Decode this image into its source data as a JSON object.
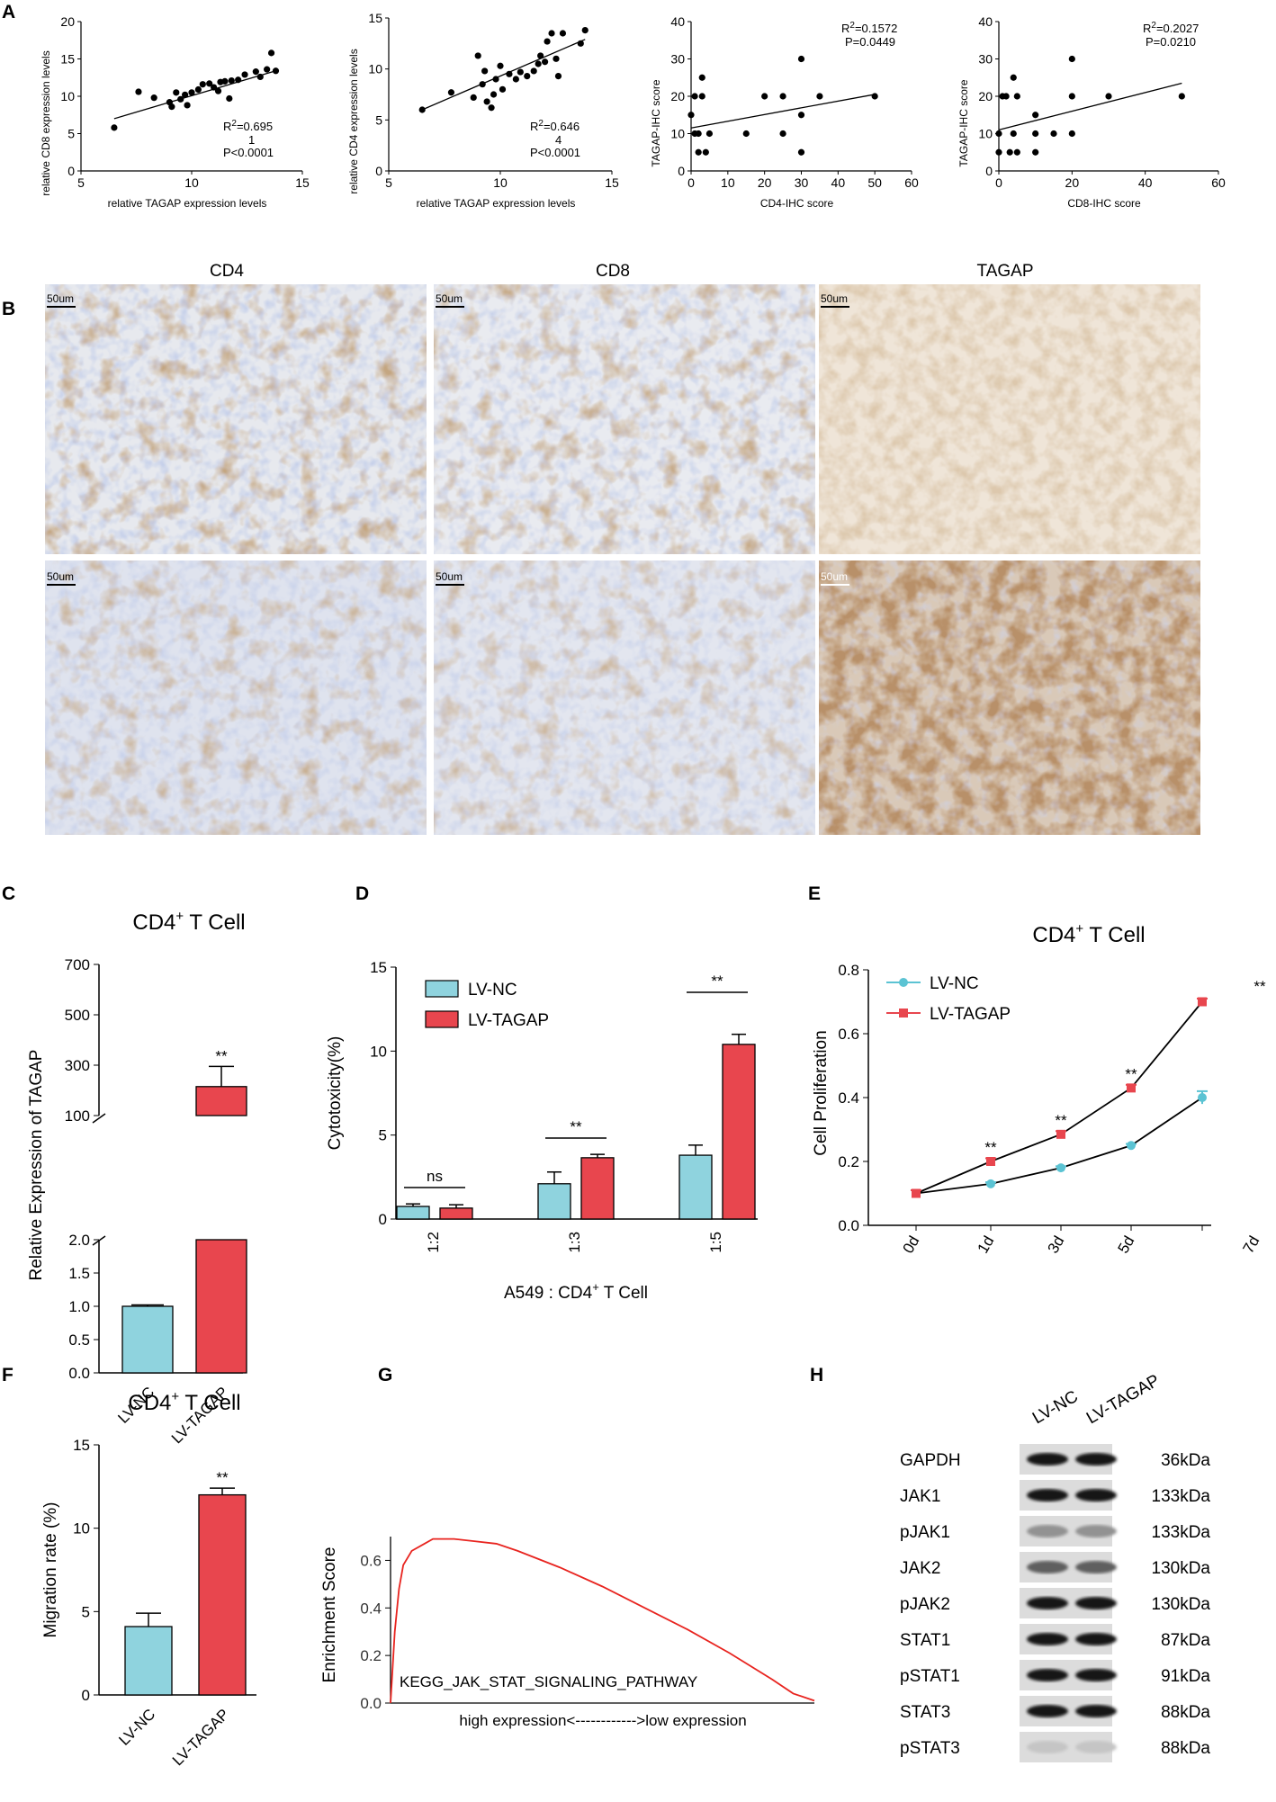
{
  "panels": {
    "A": "A",
    "B": "B",
    "C": "C",
    "D": "D",
    "E": "E",
    "F": "F",
    "G": "G",
    "H": "H"
  },
  "scatter_stats": [
    {
      "r2_main": "R",
      "r2_sup": "2",
      "r2_val": "=0.695",
      "r2_wrap": "1",
      "p": "P<0.0001"
    },
    {
      "r2_main": "R",
      "r2_sup": "2",
      "r2_val": "=0.646",
      "r2_wrap": "4",
      "p": "P<0.0001"
    },
    {
      "r2_main": "R",
      "r2_sup": "2",
      "r2_val": "=0.1572",
      "p": "P=0.0449"
    },
    {
      "r2_main": "R",
      "r2_sup": "2",
      "r2_val": "=0.2027",
      "p": "P=0.0210"
    }
  ],
  "micrographs": {
    "columns": [
      "CD4",
      "CD8",
      "TAGAP"
    ],
    "scale_bar": "50um"
  },
  "colors": {
    "lv_nc": "#8fd3de",
    "lv_tagap": "#e8464e",
    "line_nc": "#5bc3d3",
    "gsea": "#e8241f"
  },
  "chart_data": [
    {
      "id": "A1",
      "type": "scatter",
      "xlabel": "relative TAGAP expression levels",
      "ylabel": "relative CD8 expression levels",
      "xlim": [
        5,
        15
      ],
      "ylim": [
        0,
        20
      ],
      "xticks": [
        5,
        10,
        15
      ],
      "yticks": [
        0,
        5,
        10,
        15,
        20
      ],
      "points": [
        [
          6.5,
          5.8
        ],
        [
          7.6,
          10.6
        ],
        [
          8.3,
          9.8
        ],
        [
          9.0,
          9.2
        ],
        [
          9.1,
          8.6
        ],
        [
          9.3,
          10.5
        ],
        [
          9.5,
          9.6
        ],
        [
          9.7,
          10.2
        ],
        [
          9.8,
          8.8
        ],
        [
          10.0,
          10.5
        ],
        [
          10.3,
          10.9
        ],
        [
          10.5,
          11.6
        ],
        [
          10.8,
          11.7
        ],
        [
          11.0,
          11.2
        ],
        [
          11.2,
          10.7
        ],
        [
          11.5,
          12.0
        ],
        [
          11.7,
          9.7
        ],
        [
          11.8,
          12.1
        ],
        [
          12.1,
          12.2
        ],
        [
          12.4,
          12.9
        ],
        [
          12.9,
          13.3
        ],
        [
          13.1,
          12.6
        ],
        [
          13.4,
          13.6
        ],
        [
          13.6,
          15.8
        ],
        [
          13.8,
          13.4
        ],
        [
          11.3,
          11.9
        ]
      ],
      "fit": [
        [
          6.5,
          7.0
        ],
        [
          13.9,
          13.5
        ]
      ]
    },
    {
      "id": "A2",
      "type": "scatter",
      "xlabel": "relative TAGAP expression levels",
      "ylabel": "relative CD4 expression levels",
      "xlim": [
        5,
        15
      ],
      "ylim": [
        0,
        15
      ],
      "xticks": [
        5,
        10,
        15
      ],
      "yticks": [
        0,
        5,
        10,
        15
      ],
      "points": [
        [
          6.5,
          6.0
        ],
        [
          7.8,
          7.7
        ],
        [
          8.8,
          7.2
        ],
        [
          9.0,
          11.3
        ],
        [
          9.2,
          8.5
        ],
        [
          9.3,
          9.8
        ],
        [
          9.4,
          6.8
        ],
        [
          9.6,
          6.2
        ],
        [
          9.7,
          7.5
        ],
        [
          9.8,
          9.0
        ],
        [
          10.0,
          10.3
        ],
        [
          10.1,
          8.0
        ],
        [
          10.4,
          9.5
        ],
        [
          10.7,
          9.0
        ],
        [
          10.9,
          9.7
        ],
        [
          11.2,
          9.3
        ],
        [
          11.5,
          9.8
        ],
        [
          11.7,
          10.5
        ],
        [
          11.8,
          11.3
        ],
        [
          12.0,
          10.7
        ],
        [
          12.1,
          12.7
        ],
        [
          12.3,
          13.5
        ],
        [
          12.5,
          11.0
        ],
        [
          12.6,
          9.3
        ],
        [
          12.8,
          13.5
        ],
        [
          13.6,
          12.5
        ],
        [
          13.8,
          13.8
        ]
      ],
      "fit": [
        [
          6.5,
          6.0
        ],
        [
          13.8,
          12.9
        ]
      ]
    },
    {
      "id": "A3",
      "type": "scatter",
      "xlabel": "CD4-IHC score",
      "ylabel": "TAGAP-IHC score",
      "xlim": [
        0,
        60
      ],
      "ylim": [
        0,
        40
      ],
      "xticks": [
        0,
        10,
        20,
        30,
        40,
        50,
        60
      ],
      "yticks": [
        0,
        10,
        20,
        30,
        40
      ],
      "points": [
        [
          0,
          15
        ],
        [
          1,
          20
        ],
        [
          1,
          10
        ],
        [
          2,
          5
        ],
        [
          2,
          10
        ],
        [
          3,
          25
        ],
        [
          3,
          20
        ],
        [
          4,
          5
        ],
        [
          5,
          10
        ],
        [
          15,
          10
        ],
        [
          20,
          20
        ],
        [
          25,
          10
        ],
        [
          25,
          20
        ],
        [
          30,
          30
        ],
        [
          30,
          15
        ],
        [
          30,
          5
        ],
        [
          35,
          20
        ],
        [
          50,
          20
        ]
      ],
      "fit": [
        [
          0,
          11.5
        ],
        [
          50,
          20.5
        ]
      ]
    },
    {
      "id": "A4",
      "type": "scatter",
      "xlabel": "CD8-IHC score",
      "ylabel": "TAGAP-IHC score",
      "xlim": [
        0,
        60
      ],
      "ylim": [
        0,
        40
      ],
      "xticks": [
        0,
        20,
        40,
        60
      ],
      "yticks": [
        0,
        10,
        20,
        30,
        40
      ],
      "points": [
        [
          0,
          5
        ],
        [
          0,
          10
        ],
        [
          1,
          20
        ],
        [
          2,
          20
        ],
        [
          3,
          5
        ],
        [
          4,
          10
        ],
        [
          4,
          25
        ],
        [
          5,
          5
        ],
        [
          5,
          20
        ],
        [
          10,
          15
        ],
        [
          10,
          10
        ],
        [
          10,
          5
        ],
        [
          15,
          10
        ],
        [
          20,
          30
        ],
        [
          20,
          20
        ],
        [
          20,
          10
        ],
        [
          30,
          20
        ],
        [
          50,
          20
        ]
      ],
      "fit": [
        [
          0,
          11
        ],
        [
          50,
          23.5
        ]
      ]
    },
    {
      "id": "C",
      "type": "bar",
      "title": "CD4+ T Cell",
      "title_main": "CD4",
      "title_sup": "+",
      "title_rest": " T Cell",
      "ylabel": "Relative Expression of TAGAP",
      "categories": [
        "LV-NC",
        "LV-TAGAP"
      ],
      "values": [
        1.0,
        215
      ],
      "errors": [
        0.02,
        80
      ],
      "broken_axis": {
        "lower": [
          0,
          2.0
        ],
        "upper": [
          100,
          700
        ]
      },
      "yticks_lower": [
        "0.0",
        "0.5",
        "1.0",
        "1.5",
        "2.0"
      ],
      "yticks_upper": [
        "100",
        "300",
        "500",
        "700"
      ],
      "significance": "**"
    },
    {
      "id": "D",
      "type": "bar",
      "ylabel": "Cytotoxicity(%)",
      "xlabel": "A549 : CD4+ T Cell",
      "xlabel_main": "A549 : CD4",
      "xlabel_sup": "+",
      "xlabel_rest": " T Cell",
      "categories": [
        "1:2",
        "1:3",
        "1:5"
      ],
      "series": [
        {
          "name": "LV-NC",
          "values": [
            0.75,
            2.1,
            3.8
          ],
          "errors": [
            0.15,
            0.7,
            0.6
          ]
        },
        {
          "name": "LV-TAGAP",
          "values": [
            0.65,
            3.65,
            10.4
          ],
          "errors": [
            0.2,
            0.2,
            0.6
          ]
        }
      ],
      "ylim": [
        0,
        15
      ],
      "yticks": [
        0,
        5,
        10,
        15
      ],
      "significance": [
        "ns",
        "**",
        "**"
      ]
    },
    {
      "id": "E",
      "type": "line",
      "title": "CD4+ T Cell",
      "title_main": "CD4",
      "title_sup": "+",
      "title_rest": " T Cell",
      "ylabel": "Cell Proliferation",
      "categories": [
        "0d",
        "1d",
        "3d",
        "5d",
        "7d"
      ],
      "series": [
        {
          "name": "LV-NC",
          "values": [
            0.1,
            0.13,
            0.18,
            0.25,
            0.4
          ],
          "errors": [
            0.01,
            0.005,
            0.005,
            0.005,
            0.02
          ]
        },
        {
          "name": "LV-TAGAP",
          "values": [
            0.1,
            0.2,
            0.285,
            0.43,
            0.7
          ],
          "errors": [
            0.01,
            0.01,
            0.01,
            0.01,
            0.01
          ]
        }
      ],
      "ylim": [
        0,
        0.8
      ],
      "yticks": [
        "0.0",
        "0.2",
        "0.4",
        "0.6",
        "0.8"
      ],
      "significance": [
        "**",
        "**",
        "**",
        "**"
      ]
    },
    {
      "id": "F",
      "type": "bar",
      "title": "CD4+ T Cell",
      "title_main": "CD4",
      "title_sup": "+",
      "title_rest": " T Cell",
      "ylabel": "Migration rate (%)",
      "categories": [
        "LV-NC",
        "LV-TAGAP"
      ],
      "values": [
        4.1,
        12.0
      ],
      "errors": [
        0.8,
        0.4
      ],
      "ylim": [
        0,
        15
      ],
      "yticks": [
        0,
        5,
        10,
        15
      ],
      "significance": "**"
    },
    {
      "id": "G",
      "type": "line",
      "ylabel": "Enrichment Score",
      "xlabel": "high expression<------------>low expression",
      "label": "KEGG_JAK_STAT_SIGNALING_PATHWAY",
      "ylim": [
        0,
        0.7
      ],
      "yticks": [
        "0.0",
        "0.2",
        "0.4",
        "0.6"
      ],
      "x": [
        0,
        0.01,
        0.02,
        0.03,
        0.05,
        0.08,
        0.1,
        0.15,
        0.2,
        0.25,
        0.3,
        0.4,
        0.5,
        0.6,
        0.7,
        0.8,
        0.9,
        0.95,
        1.0
      ],
      "values": [
        0.0,
        0.3,
        0.48,
        0.58,
        0.64,
        0.67,
        0.69,
        0.69,
        0.68,
        0.67,
        0.64,
        0.57,
        0.49,
        0.4,
        0.31,
        0.21,
        0.1,
        0.04,
        0.01
      ]
    }
  ],
  "western": {
    "lanes": [
      "LV-NC",
      "LV-TAGAP"
    ],
    "rows": [
      {
        "protein": "GAPDH",
        "size": "36kDa",
        "intensity": 0.95
      },
      {
        "protein": "JAK1",
        "size": "133kDa",
        "intensity": 0.85
      },
      {
        "protein": "pJAK1",
        "size": "133kDa",
        "intensity": 0.35
      },
      {
        "protein": "JAK2",
        "size": "130kDa",
        "intensity": 0.55
      },
      {
        "protein": "pJAK2",
        "size": "130kDa",
        "intensity": 0.9
      },
      {
        "protein": "STAT1",
        "size": "87kDa",
        "intensity": 0.95
      },
      {
        "protein": "pSTAT1",
        "size": "91kDa",
        "intensity": 0.85
      },
      {
        "protein": "STAT3",
        "size": "88kDa",
        "intensity": 0.9
      },
      {
        "protein": "pSTAT3",
        "size": "88kDa",
        "intensity": 0.15
      }
    ]
  }
}
